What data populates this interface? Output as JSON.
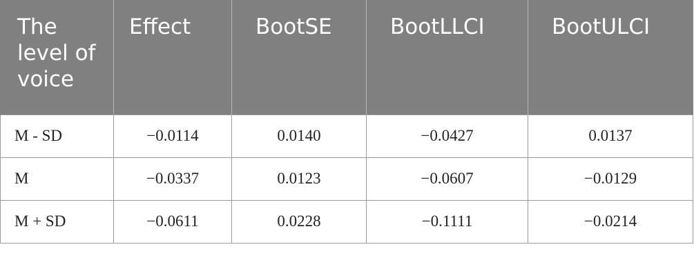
{
  "table": {
    "headers": [
      "The level of voice",
      "Effect",
      "BootSE",
      "BootLLCI",
      "BootULCI"
    ],
    "rows": [
      {
        "label": "M - SD",
        "values": [
          "−0.0114",
          "0.0140",
          "−0.0427",
          "0.0137"
        ]
      },
      {
        "label": "M",
        "values": [
          "−0.0337",
          "0.0123",
          "−0.0607",
          "−0.0129"
        ]
      },
      {
        "label": "M + SD",
        "values": [
          "−0.0611",
          "0.0228",
          "−0.1111",
          "−0.0214"
        ]
      }
    ]
  }
}
